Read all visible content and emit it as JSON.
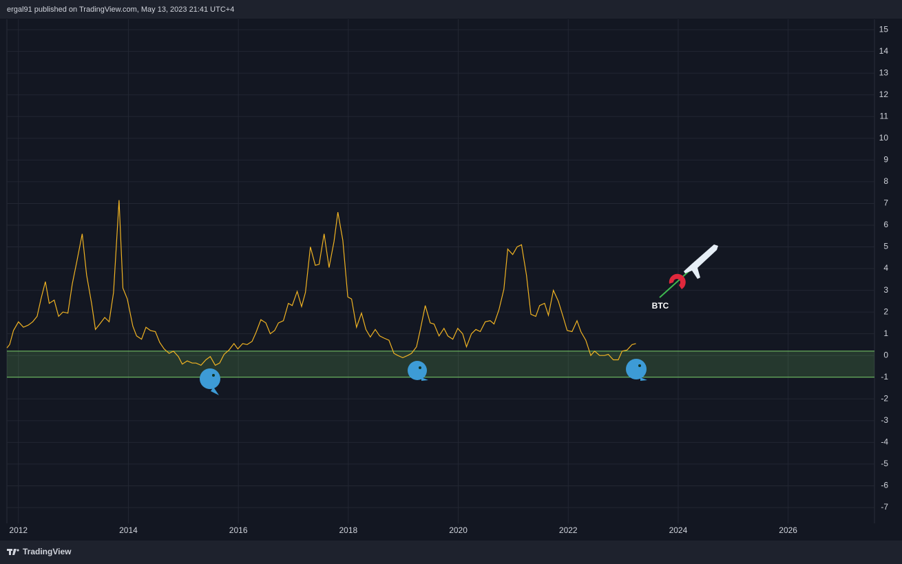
{
  "header": {
    "text": "ergal91 published on TradingView.com, May 13, 2023 21:41 UTC+4"
  },
  "footer": {
    "brand": "TradingView"
  },
  "chart_data": {
    "type": "line",
    "color": "#f0b323",
    "x": [
      2011.79,
      2011.84,
      2011.91,
      2012.0,
      2012.09,
      2012.18,
      2012.26,
      2012.34,
      2012.41,
      2012.49,
      2012.56,
      2012.65,
      2012.73,
      2012.81,
      2012.9,
      2012.98,
      2013.06,
      2013.16,
      2013.24,
      2013.33,
      2013.4,
      2013.48,
      2013.57,
      2013.65,
      2013.73,
      2013.83,
      2013.9,
      2013.98,
      2014.08,
      2014.15,
      2014.24,
      2014.32,
      2014.4,
      2014.49,
      2014.57,
      2014.65,
      2014.74,
      2014.82,
      2014.91,
      2014.98,
      2015.07,
      2015.16,
      2015.23,
      2015.32,
      2015.41,
      2015.49,
      2015.58,
      2015.66,
      2015.74,
      2015.83,
      2015.92,
      2015.99,
      2016.08,
      2016.16,
      2016.25,
      2016.32,
      2016.41,
      2016.5,
      2016.58,
      2016.66,
      2016.73,
      2016.82,
      2016.91,
      2016.98,
      2017.07,
      2017.15,
      2017.22,
      2017.31,
      2017.4,
      2017.47,
      2017.56,
      2017.65,
      2017.74,
      2017.81,
      2017.9,
      2017.99,
      2018.06,
      2018.15,
      2018.24,
      2018.32,
      2018.4,
      2018.49,
      2018.57,
      2018.65,
      2018.74,
      2018.83,
      2018.9,
      2018.99,
      2019.08,
      2019.15,
      2019.24,
      2019.31,
      2019.4,
      2019.49,
      2019.56,
      2019.65,
      2019.74,
      2019.81,
      2019.9,
      2019.99,
      2020.08,
      2020.15,
      2020.24,
      2020.32,
      2020.4,
      2020.49,
      2020.58,
      2020.65,
      2020.74,
      2020.83,
      2020.9,
      2020.99,
      2021.07,
      2021.15,
      2021.24,
      2021.32,
      2021.41,
      2021.48,
      2021.57,
      2021.64,
      2021.73,
      2021.82,
      2021.91,
      2021.98,
      2022.07,
      2022.16,
      2022.23,
      2022.32,
      2022.41,
      2022.48,
      2022.57,
      2022.66,
      2022.73,
      2022.82,
      2022.91,
      2022.98,
      2023.07,
      2023.16,
      2023.23
    ],
    "values": [
      0.35,
      0.5,
      1.15,
      1.55,
      1.3,
      1.4,
      1.55,
      1.8,
      2.6,
      3.4,
      2.4,
      2.55,
      1.8,
      2.0,
      1.95,
      3.3,
      4.3,
      5.6,
      3.7,
      2.4,
      1.2,
      1.45,
      1.75,
      1.55,
      2.9,
      7.15,
      3.1,
      2.6,
      1.35,
      0.9,
      0.75,
      1.3,
      1.15,
      1.1,
      0.6,
      0.3,
      0.1,
      0.2,
      -0.05,
      -0.4,
      -0.25,
      -0.35,
      -0.35,
      -0.45,
      -0.2,
      -0.05,
      -0.45,
      -0.35,
      0.05,
      0.25,
      0.55,
      0.3,
      0.55,
      0.5,
      0.65,
      1.05,
      1.65,
      1.5,
      1.0,
      1.15,
      1.5,
      1.6,
      2.4,
      2.3,
      2.95,
      2.25,
      2.9,
      5.0,
      4.15,
      4.2,
      5.6,
      4.05,
      5.25,
      6.6,
      5.3,
      2.7,
      2.6,
      1.3,
      1.95,
      1.2,
      0.85,
      1.2,
      0.9,
      0.8,
      0.7,
      0.1,
      0.0,
      -0.1,
      0.0,
      0.1,
      0.4,
      1.2,
      2.3,
      1.5,
      1.45,
      0.9,
      1.25,
      0.9,
      0.75,
      1.25,
      1.0,
      0.4,
      1.0,
      1.2,
      1.1,
      1.55,
      1.6,
      1.45,
      2.1,
      3.05,
      4.9,
      4.65,
      5.0,
      5.1,
      3.7,
      1.9,
      1.8,
      2.3,
      2.4,
      1.85,
      3.0,
      2.5,
      1.75,
      1.15,
      1.1,
      1.6,
      1.1,
      0.7,
      0.0,
      0.2,
      0.0,
      0.0,
      0.05,
      -0.2,
      -0.2,
      0.2,
      0.25,
      0.5,
      0.55
    ],
    "band": [
      -1,
      0.2
    ],
    "band_color": "#7bd06a",
    "annotation": "BTC",
    "xlim": [
      2011.79,
      2027.57
    ],
    "xticks": [
      2012,
      2014,
      2016,
      2018,
      2020,
      2022,
      2024,
      2026
    ],
    "ylim": [
      -7.73,
      15.48
    ],
    "yticks": [
      -7,
      -6,
      -5,
      -4,
      -3,
      -2,
      -1,
      0,
      1,
      2,
      3,
      4,
      5,
      6,
      7,
      8,
      9,
      10,
      11,
      12,
      13,
      14,
      15
    ],
    "grid": true
  }
}
